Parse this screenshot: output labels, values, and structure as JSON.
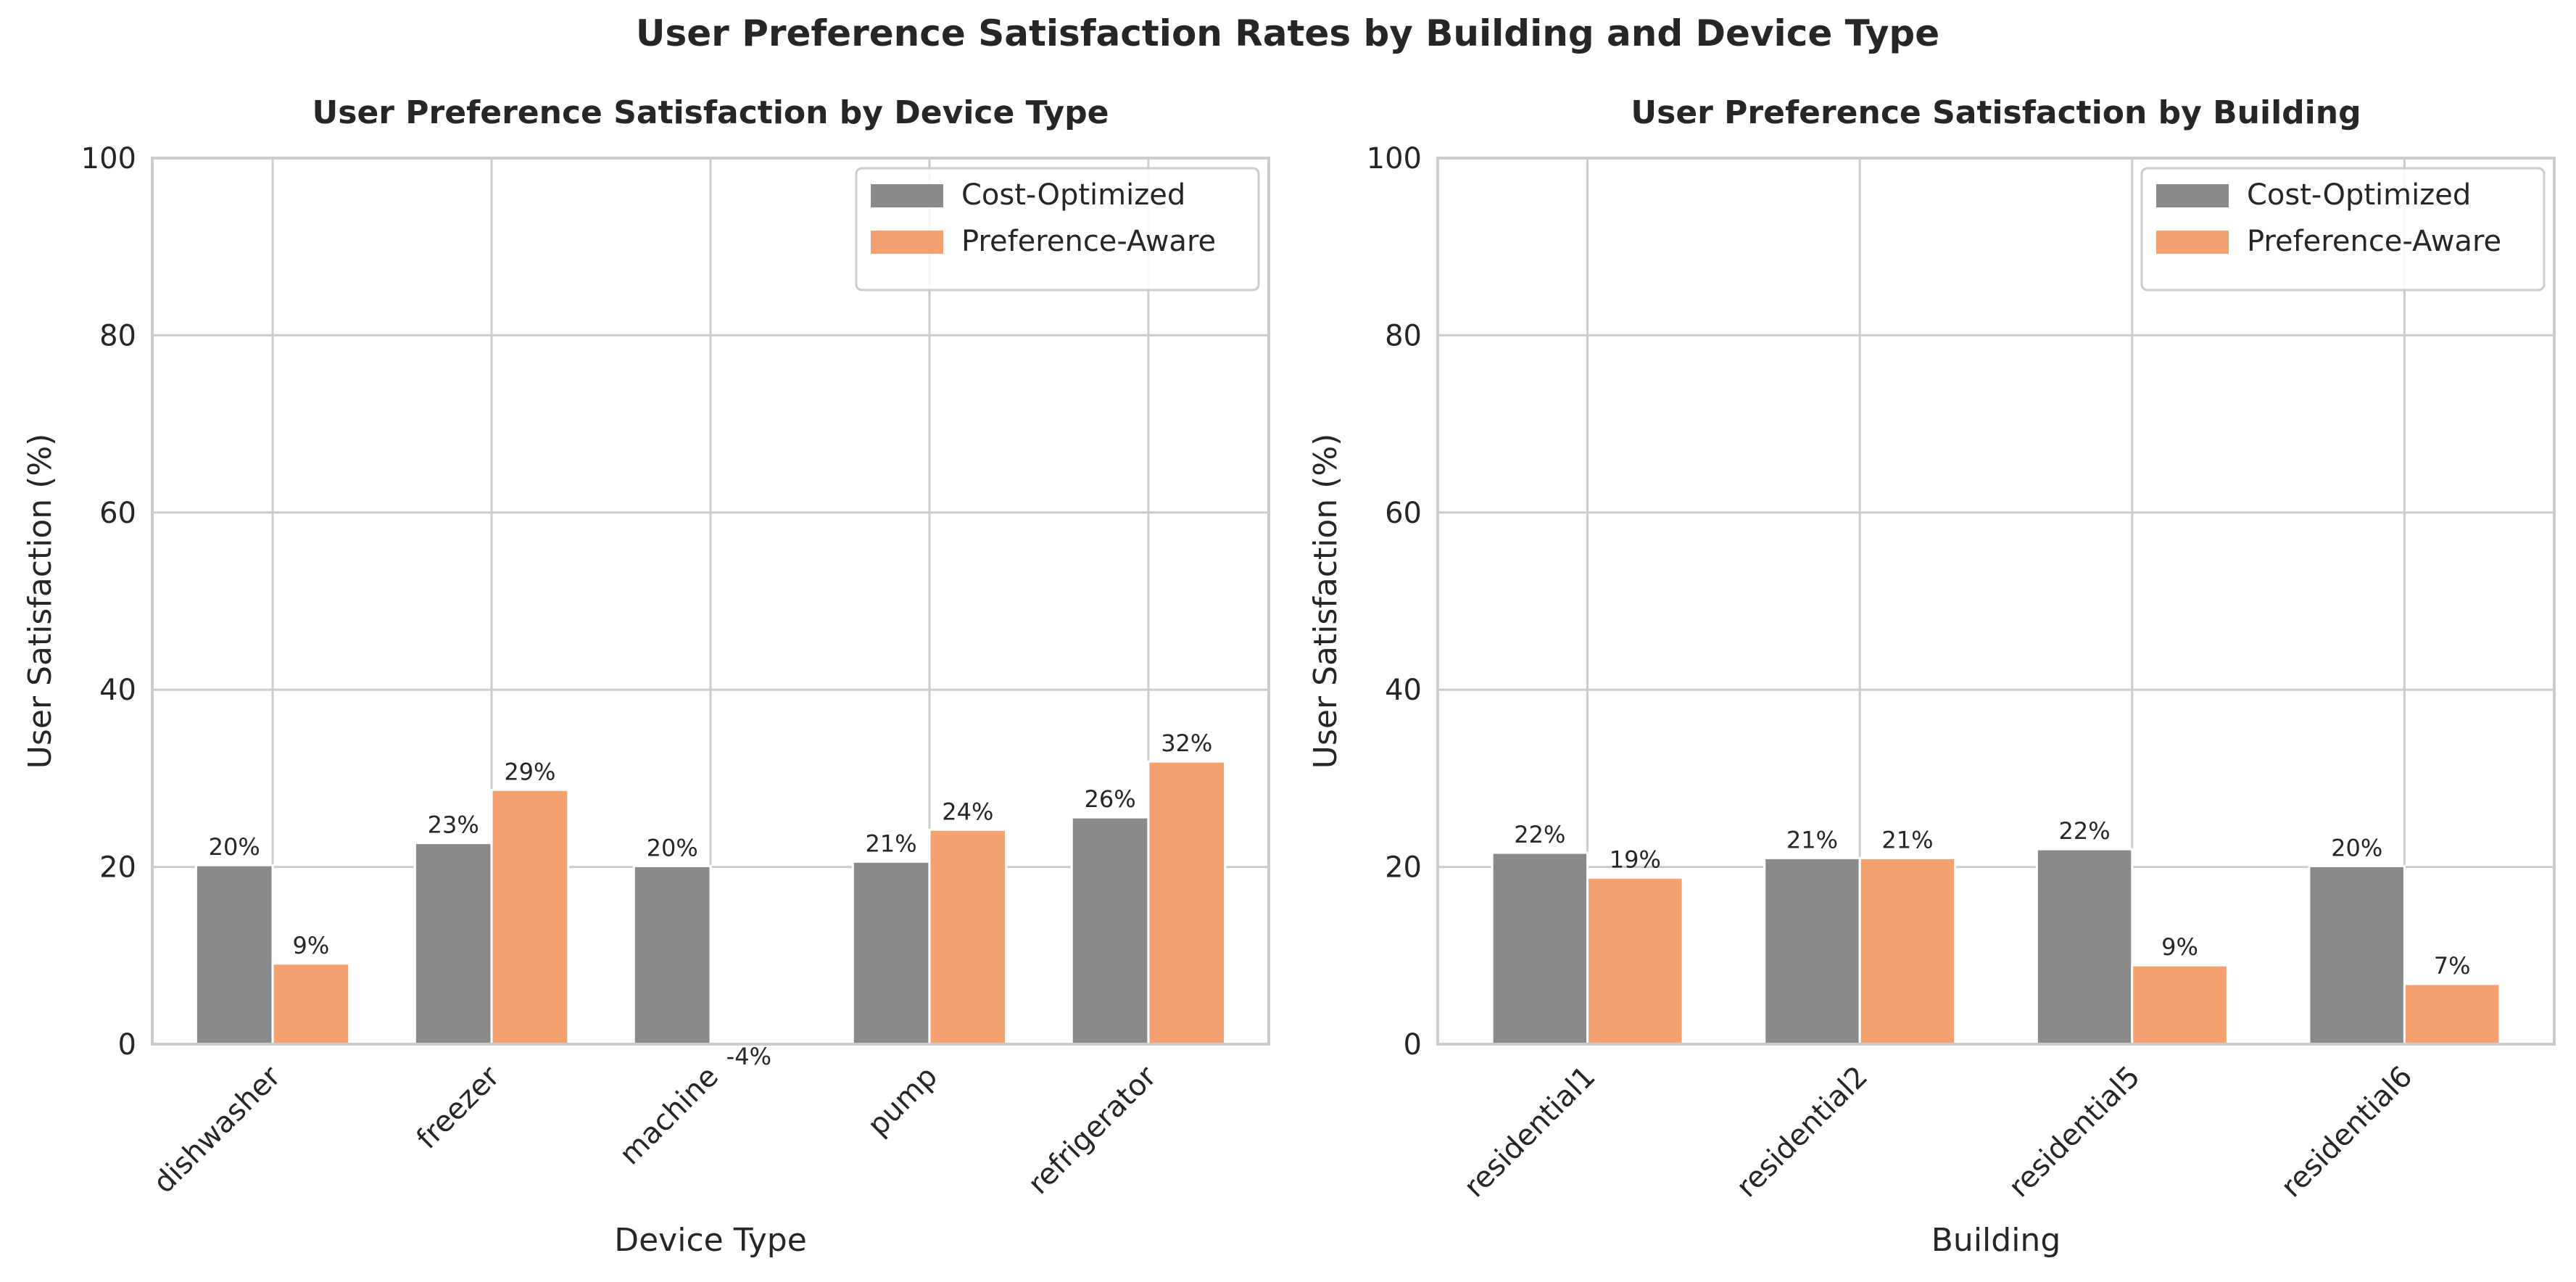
{
  "figure": {
    "title": "User Preference Satisfaction Rates by Building and Device Type"
  },
  "colors": {
    "cost_optimized": "#8a8a8b",
    "preference_aware": "#f4a06f",
    "grid": "#cccccc",
    "frame": "#cccccc",
    "text": "#262626"
  },
  "chart_data": [
    {
      "type": "bar",
      "title": "User Preference Satisfaction by Device Type",
      "xlabel": "Device Type",
      "ylabel": "User Satisfaction (%)",
      "ylim": [
        0,
        100
      ],
      "yticks": [
        0,
        20,
        40,
        60,
        80,
        100
      ],
      "grid": true,
      "legend": "top-right",
      "categories": [
        "dishwasher",
        "freezer",
        "machine",
        "pump",
        "refrigerator"
      ],
      "series": [
        {
          "name": "Cost-Optimized",
          "values": [
            20.2,
            22.7,
            20.1,
            20.6,
            25.6
          ],
          "labels": [
            "20%",
            "23%",
            "20%",
            "21%",
            "26%"
          ]
        },
        {
          "name": "Preference-Aware",
          "values": [
            9.1,
            28.7,
            -4.0,
            24.2,
            31.9
          ],
          "labels": [
            "9%",
            "29%",
            "-4%",
            "24%",
            "32%"
          ]
        }
      ]
    },
    {
      "type": "bar",
      "title": "User Preference Satisfaction by Building",
      "xlabel": "Building",
      "ylabel": "User Satisfaction (%)",
      "ylim": [
        0,
        100
      ],
      "yticks": [
        0,
        20,
        40,
        60,
        80,
        100
      ],
      "grid": true,
      "legend": "top-right",
      "categories": [
        "residential1",
        "residential2",
        "residential5",
        "residential6"
      ],
      "series": [
        {
          "name": "Cost-Optimized",
          "values": [
            21.6,
            21.0,
            22.0,
            20.1
          ],
          "labels": [
            "22%",
            "21%",
            "22%",
            "20%"
          ]
        },
        {
          "name": "Preference-Aware",
          "values": [
            18.8,
            21.0,
            8.9,
            6.8
          ],
          "labels": [
            "19%",
            "21%",
            "9%",
            "7%"
          ]
        }
      ]
    }
  ]
}
